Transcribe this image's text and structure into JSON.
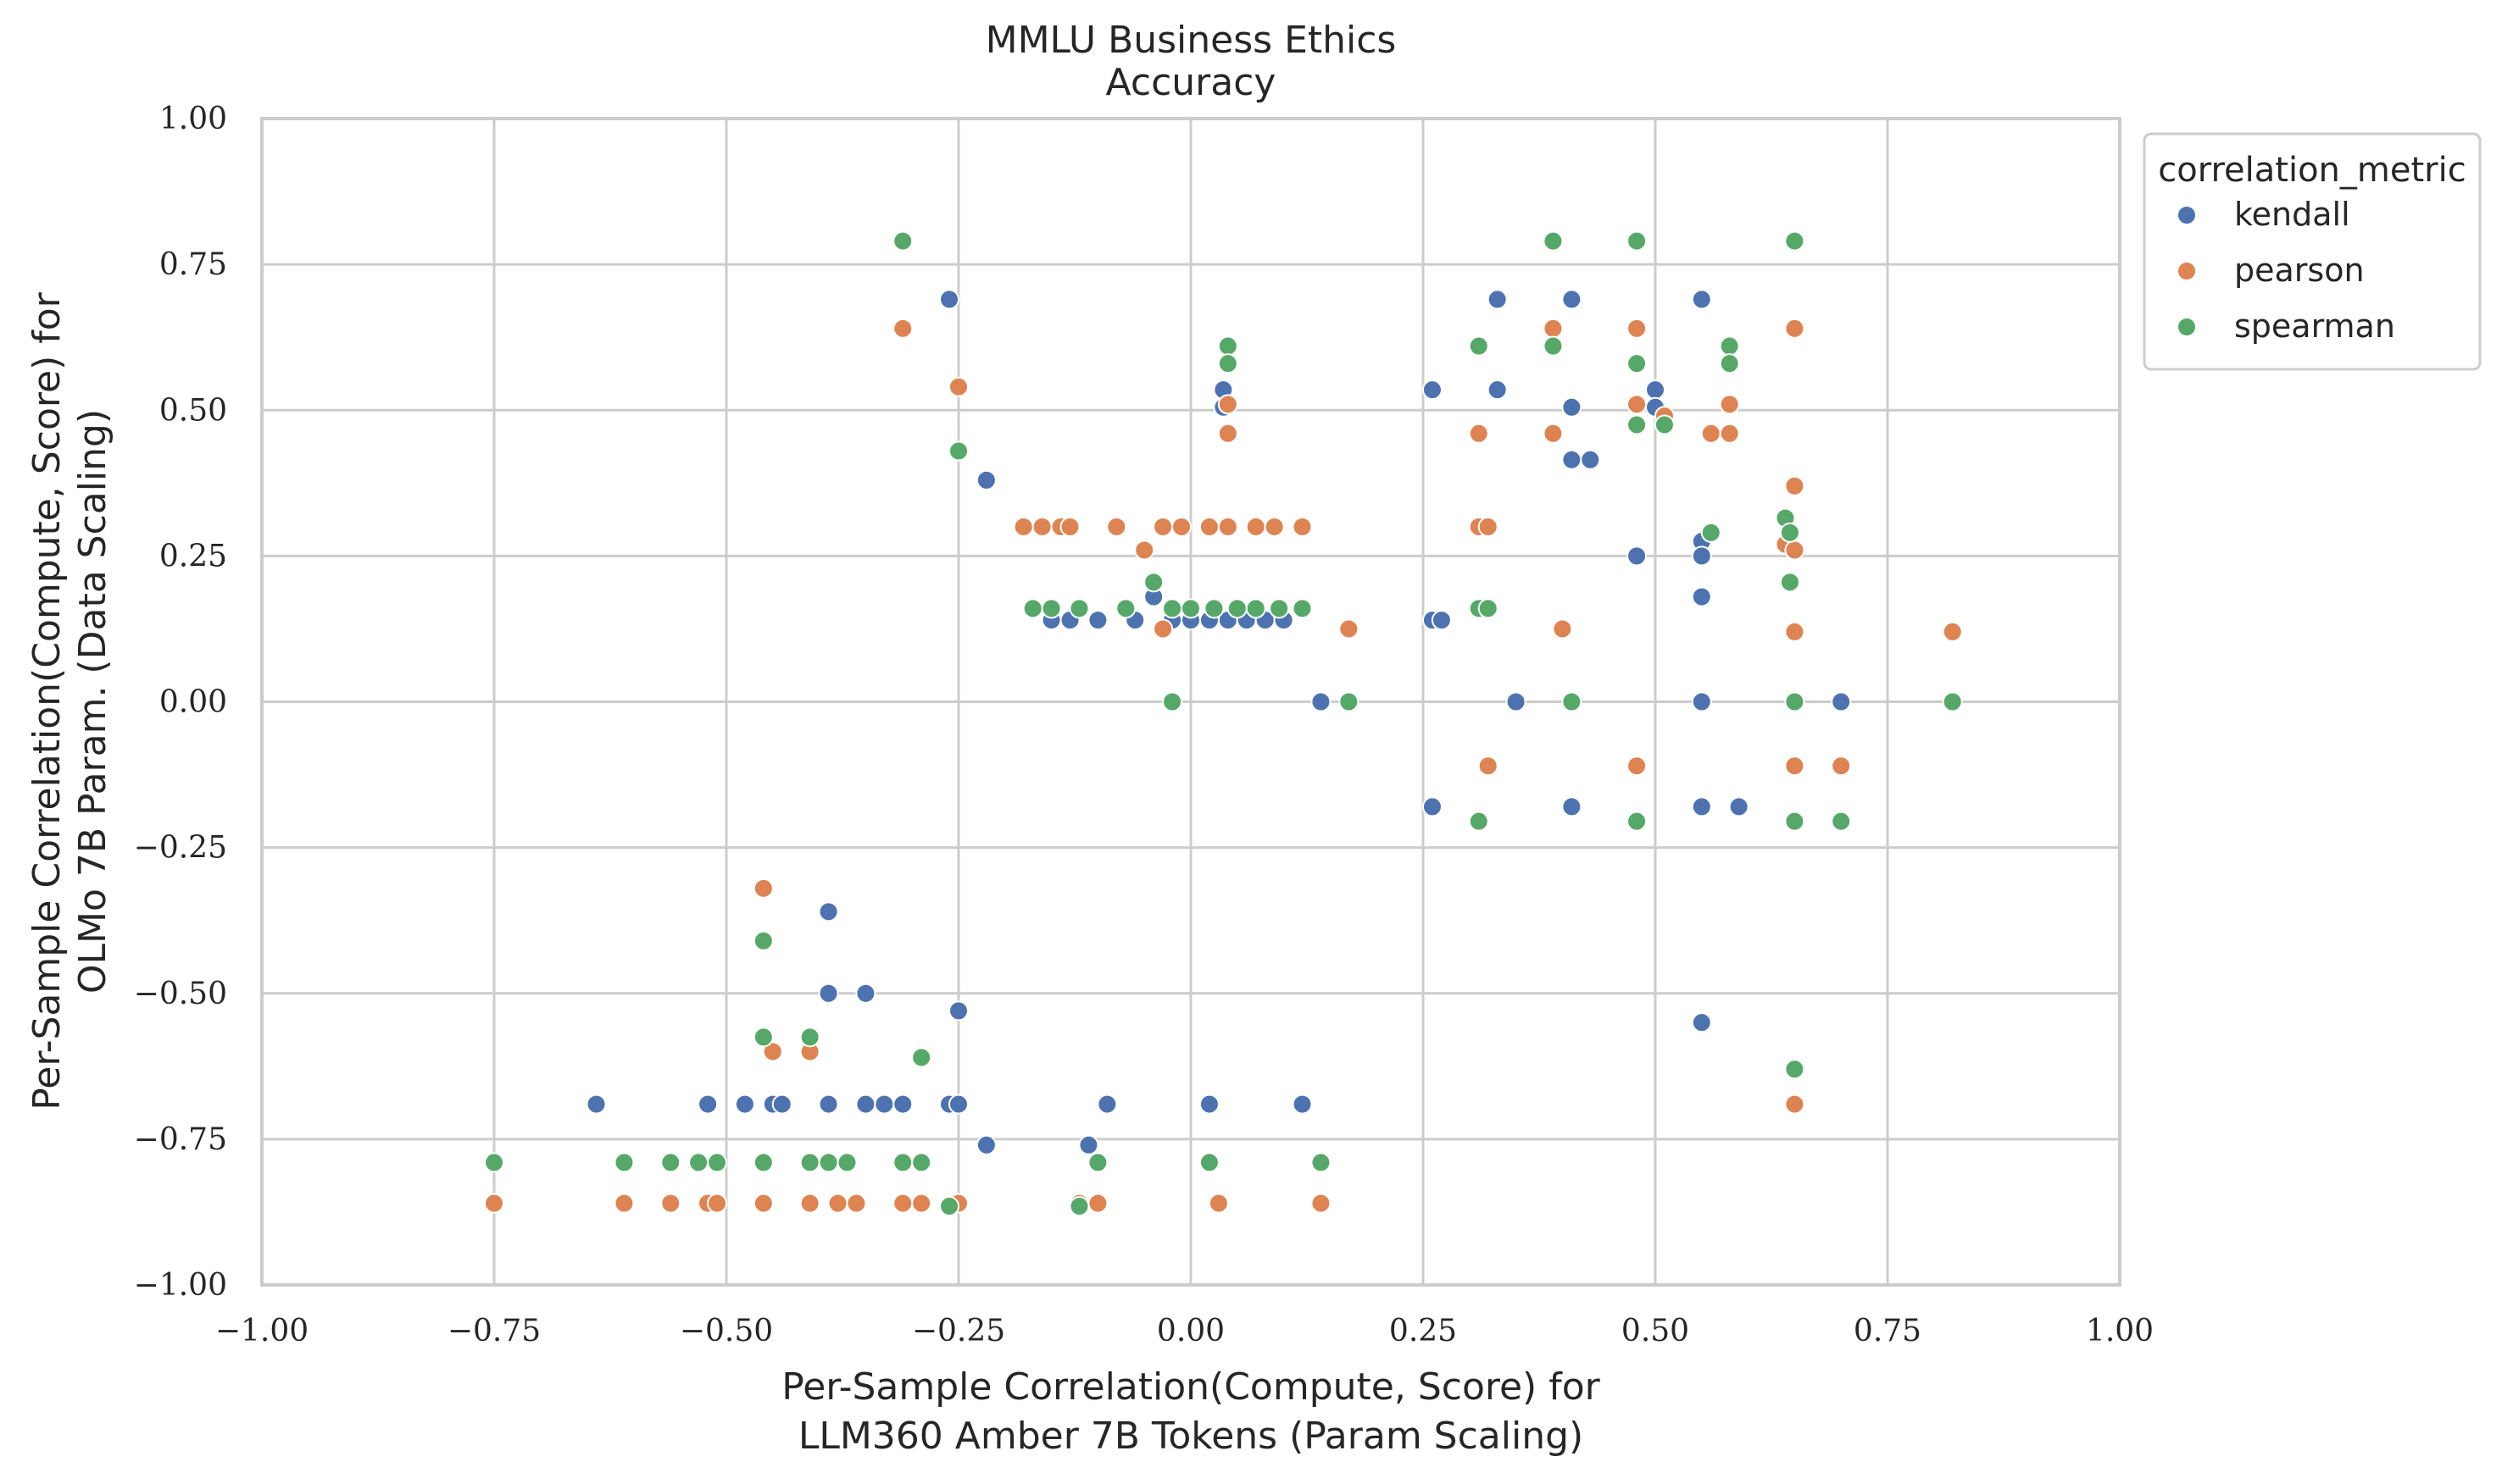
{
  "chart_data": {
    "type": "scatter",
    "title": "MMLU Business Ethics",
    "subtitle": "Accuracy",
    "xlabel": [
      "Per-Sample Correlation(Compute, Score) for",
      "LLM360 Amber 7B Tokens (Param Scaling)"
    ],
    "ylabel": [
      "Per-Sample Correlation(Compute, Score) for",
      "OLMo 7B Param. (Data Scaling)"
    ],
    "xlim": [
      -1.0,
      1.0
    ],
    "ylim": [
      -1.0,
      1.0
    ],
    "xticks": [
      "−1.00",
      "−0.75",
      "−0.50",
      "−0.25",
      "0.00",
      "0.25",
      "0.50",
      "0.75",
      "1.00"
    ],
    "yticks": [
      "−1.00",
      "−0.75",
      "−0.50",
      "−0.25",
      "0.00",
      "0.25",
      "0.50",
      "0.75",
      "1.00"
    ],
    "grid": true,
    "legend": {
      "title": "correlation_metric",
      "placement": "outside-upper-right"
    },
    "series": [
      {
        "name": "kendall",
        "color": "#4c72b0",
        "points": [
          [
            -0.64,
            -0.69
          ],
          [
            -0.52,
            -0.69
          ],
          [
            -0.48,
            -0.69
          ],
          [
            -0.45,
            -0.69
          ],
          [
            -0.44,
            -0.69
          ],
          [
            -0.39,
            -0.69
          ],
          [
            -0.35,
            -0.69
          ],
          [
            -0.33,
            -0.69
          ],
          [
            -0.31,
            -0.69
          ],
          [
            -0.26,
            -0.69
          ],
          [
            -0.25,
            -0.69
          ],
          [
            -0.09,
            -0.69
          ],
          [
            0.02,
            -0.69
          ],
          [
            0.12,
            -0.69
          ],
          [
            -0.22,
            -0.76
          ],
          [
            -0.11,
            -0.76
          ],
          [
            -0.39,
            -0.36
          ],
          [
            -0.39,
            -0.5
          ],
          [
            -0.35,
            -0.5
          ],
          [
            -0.25,
            -0.53
          ],
          [
            -0.26,
            0.69
          ],
          [
            -0.22,
            0.38
          ],
          [
            -0.15,
            0.14
          ],
          [
            -0.13,
            0.14
          ],
          [
            -0.1,
            0.14
          ],
          [
            -0.06,
            0.14
          ],
          [
            -0.04,
            0.18
          ],
          [
            -0.02,
            0.14
          ],
          [
            0.0,
            0.14
          ],
          [
            0.02,
            0.14
          ],
          [
            0.04,
            0.14
          ],
          [
            0.06,
            0.14
          ],
          [
            0.08,
            0.14
          ],
          [
            0.1,
            0.14
          ],
          [
            0.035,
            0.535
          ],
          [
            0.035,
            0.505
          ],
          [
            0.14,
            0.0
          ],
          [
            0.26,
            0.14
          ],
          [
            0.27,
            0.14
          ],
          [
            0.26,
            0.535
          ],
          [
            0.33,
            0.69
          ],
          [
            0.33,
            0.535
          ],
          [
            0.41,
            0.69
          ],
          [
            0.41,
            0.505
          ],
          [
            0.41,
            0.415
          ],
          [
            0.43,
            0.415
          ],
          [
            0.35,
            0.0
          ],
          [
            0.26,
            -0.18
          ],
          [
            0.41,
            -0.18
          ],
          [
            0.48,
            0.25
          ],
          [
            0.5,
            0.535
          ],
          [
            0.5,
            0.505
          ],
          [
            0.55,
            0.69
          ],
          [
            0.55,
            0.275
          ],
          [
            0.55,
            0.25
          ],
          [
            0.55,
            0.18
          ],
          [
            0.55,
            0.0
          ],
          [
            0.55,
            -0.18
          ],
          [
            0.59,
            -0.18
          ],
          [
            0.55,
            -0.55
          ],
          [
            0.7,
            0.0
          ]
        ]
      },
      {
        "name": "pearson",
        "color": "#dd8452",
        "points": [
          [
            -0.75,
            -0.86
          ],
          [
            -0.61,
            -0.86
          ],
          [
            -0.56,
            -0.86
          ],
          [
            -0.52,
            -0.86
          ],
          [
            -0.51,
            -0.86
          ],
          [
            -0.46,
            -0.86
          ],
          [
            -0.41,
            -0.86
          ],
          [
            -0.38,
            -0.86
          ],
          [
            -0.36,
            -0.86
          ],
          [
            -0.31,
            -0.86
          ],
          [
            -0.29,
            -0.86
          ],
          [
            -0.25,
            -0.86
          ],
          [
            -0.12,
            -0.86
          ],
          [
            -0.1,
            -0.86
          ],
          [
            0.03,
            -0.86
          ],
          [
            0.14,
            -0.86
          ],
          [
            -0.46,
            -0.32
          ],
          [
            -0.45,
            -0.6
          ],
          [
            -0.41,
            -0.6
          ],
          [
            -0.31,
            0.64
          ],
          [
            -0.25,
            0.54
          ],
          [
            -0.18,
            0.3
          ],
          [
            -0.16,
            0.3
          ],
          [
            -0.14,
            0.3
          ],
          [
            -0.13,
            0.3
          ],
          [
            -0.08,
            0.3
          ],
          [
            -0.05,
            0.26
          ],
          [
            -0.03,
            0.3
          ],
          [
            -0.01,
            0.3
          ],
          [
            0.02,
            0.3
          ],
          [
            0.04,
            0.3
          ],
          [
            0.07,
            0.3
          ],
          [
            0.09,
            0.3
          ],
          [
            0.12,
            0.3
          ],
          [
            -0.03,
            0.125
          ],
          [
            0.04,
            0.51
          ],
          [
            0.04,
            0.46
          ],
          [
            0.17,
            0.125
          ],
          [
            0.31,
            0.46
          ],
          [
            0.31,
            0.3
          ],
          [
            0.32,
            0.3
          ],
          [
            0.32,
            -0.11
          ],
          [
            0.39,
            0.64
          ],
          [
            0.39,
            0.46
          ],
          [
            0.4,
            0.125
          ],
          [
            0.48,
            0.64
          ],
          [
            0.48,
            0.51
          ],
          [
            0.48,
            -0.11
          ],
          [
            0.51,
            0.49
          ],
          [
            0.56,
            0.46
          ],
          [
            0.58,
            0.51
          ],
          [
            0.58,
            0.46
          ],
          [
            0.65,
            0.64
          ],
          [
            0.65,
            0.37
          ],
          [
            0.64,
            0.27
          ],
          [
            0.65,
            0.26
          ],
          [
            0.65,
            0.12
          ],
          [
            0.65,
            -0.11
          ],
          [
            0.65,
            -0.69
          ],
          [
            0.7,
            -0.11
          ],
          [
            0.82,
            0.12
          ]
        ]
      },
      {
        "name": "spearman",
        "color": "#55a868",
        "points": [
          [
            -0.75,
            -0.79
          ],
          [
            -0.61,
            -0.79
          ],
          [
            -0.56,
            -0.79
          ],
          [
            -0.53,
            -0.79
          ],
          [
            -0.51,
            -0.79
          ],
          [
            -0.46,
            -0.79
          ],
          [
            -0.41,
            -0.79
          ],
          [
            -0.39,
            -0.79
          ],
          [
            -0.37,
            -0.79
          ],
          [
            -0.31,
            -0.79
          ],
          [
            -0.29,
            -0.79
          ],
          [
            -0.26,
            -0.865
          ],
          [
            -0.12,
            -0.865
          ],
          [
            -0.1,
            -0.79
          ],
          [
            0.02,
            -0.79
          ],
          [
            0.14,
            -0.79
          ],
          [
            -0.46,
            -0.41
          ],
          [
            -0.46,
            -0.575
          ],
          [
            -0.41,
            -0.575
          ],
          [
            -0.29,
            -0.61
          ],
          [
            -0.31,
            0.79
          ],
          [
            -0.25,
            0.43
          ],
          [
            -0.17,
            0.16
          ],
          [
            -0.15,
            0.16
          ],
          [
            -0.12,
            0.16
          ],
          [
            -0.07,
            0.16
          ],
          [
            -0.04,
            0.205
          ],
          [
            -0.02,
            0.16
          ],
          [
            0.0,
            0.16
          ],
          [
            0.025,
            0.16
          ],
          [
            0.05,
            0.16
          ],
          [
            0.07,
            0.16
          ],
          [
            0.095,
            0.16
          ],
          [
            0.12,
            0.16
          ],
          [
            -0.02,
            0.0
          ],
          [
            0.04,
            0.61
          ],
          [
            0.04,
            0.58
          ],
          [
            0.17,
            0.0
          ],
          [
            0.31,
            0.61
          ],
          [
            0.31,
            0.16
          ],
          [
            0.32,
            0.16
          ],
          [
            0.31,
            -0.205
          ],
          [
            0.39,
            0.79
          ],
          [
            0.39,
            0.61
          ],
          [
            0.41,
            0.0
          ],
          [
            0.48,
            0.79
          ],
          [
            0.48,
            0.58
          ],
          [
            0.48,
            0.475
          ],
          [
            0.48,
            -0.205
          ],
          [
            0.51,
            0.475
          ],
          [
            0.56,
            0.29
          ],
          [
            0.58,
            0.61
          ],
          [
            0.58,
            0.58
          ],
          [
            0.65,
            0.79
          ],
          [
            0.64,
            0.315
          ],
          [
            0.645,
            0.29
          ],
          [
            0.645,
            0.205
          ],
          [
            0.65,
            0.0
          ],
          [
            0.65,
            -0.205
          ],
          [
            0.65,
            -0.63
          ],
          [
            0.7,
            -0.205
          ],
          [
            0.82,
            0.0
          ]
        ]
      }
    ]
  }
}
